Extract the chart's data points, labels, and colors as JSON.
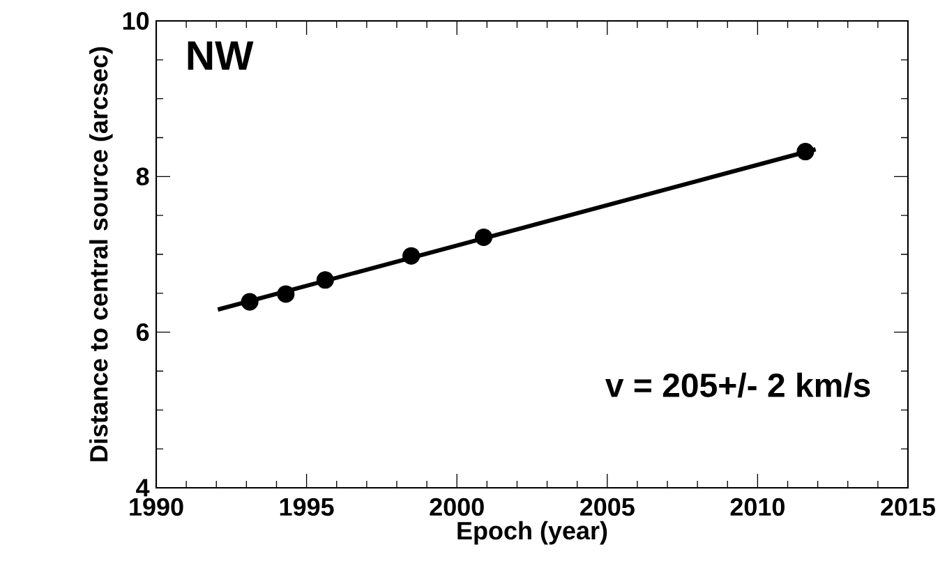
{
  "chart_data": {
    "type": "scatter",
    "xlabel": "Epoch (year)",
    "ylabel": "Distance to central source (arcsec)",
    "annotations": [
      "NW",
      "v = 205+/- 2 km/s"
    ],
    "xlim": [
      1990,
      2015
    ],
    "xticks": [
      1990,
      1995,
      2000,
      2005,
      2010,
      2015
    ],
    "ylim": [
      4,
      10
    ],
    "yticks": [
      4,
      6,
      8,
      10
    ],
    "grid": false,
    "marker": "circle",
    "series": [
      {
        "color": "#000000",
        "x": [
          1993.11,
          1994.31,
          1995.62,
          1998.48,
          2000.89,
          2011.59
        ],
        "values": [
          6.39,
          6.49,
          6.67,
          6.98,
          7.22,
          8.32
        ]
      },
      {
        "type": "line",
        "color": "#000000",
        "marker": "none",
        "line_style": "solid",
        "x": [
          1992.05,
          2011.93
        ],
        "values": [
          6.29,
          8.35
        ]
      }
    ]
  }
}
